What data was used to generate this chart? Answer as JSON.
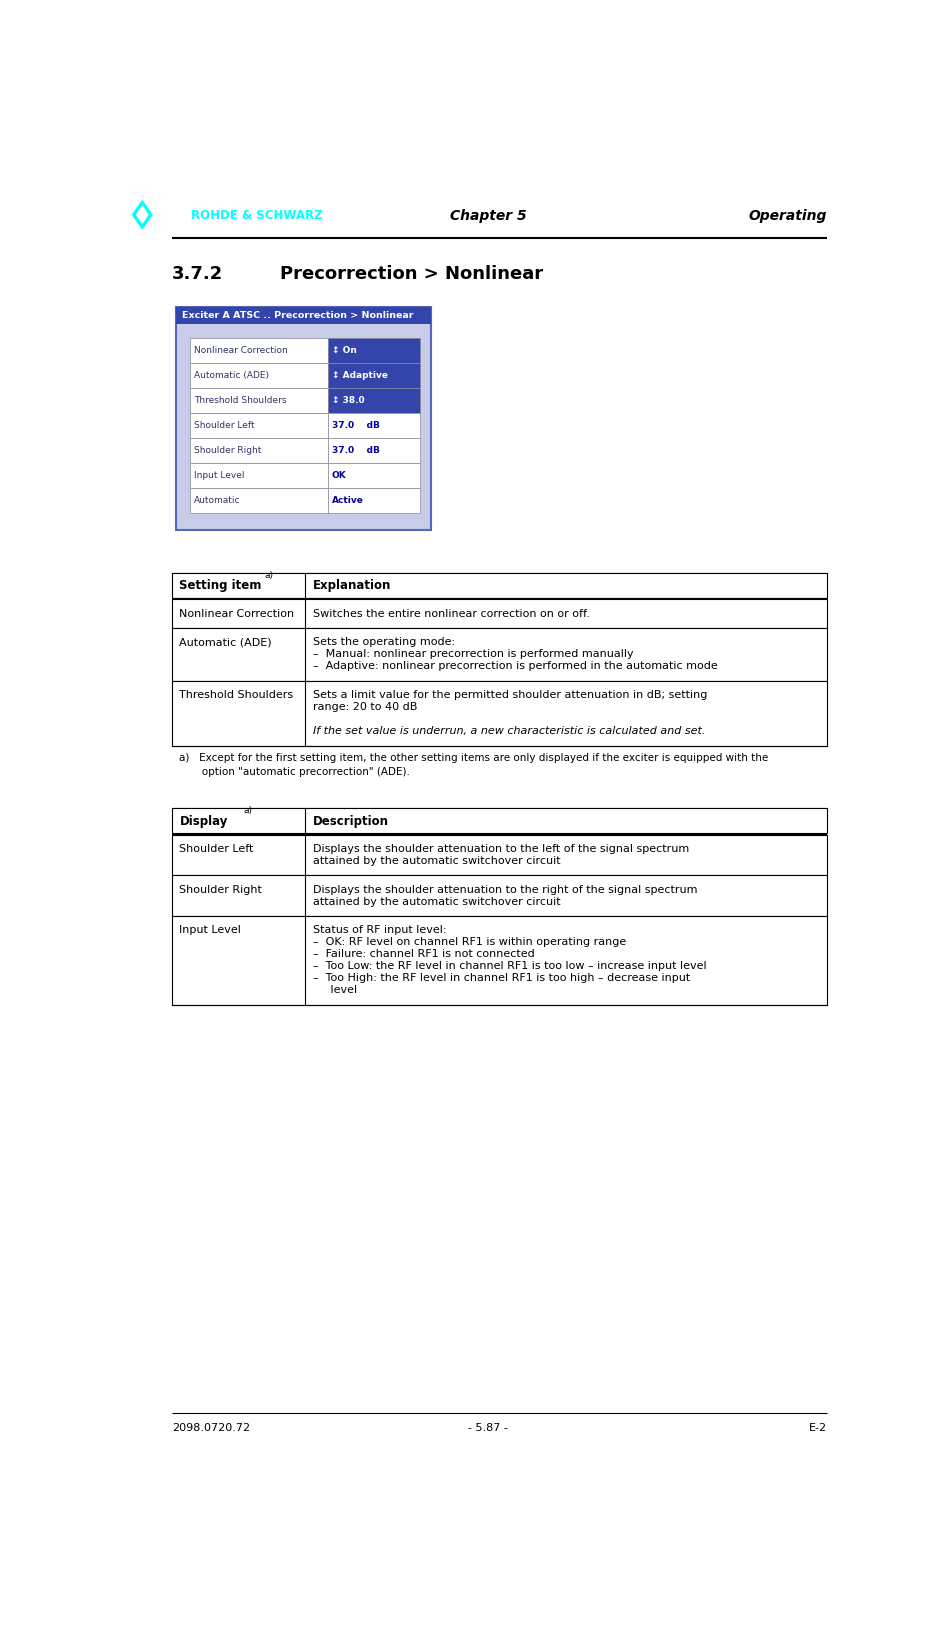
{
  "page_width": 9.52,
  "page_height": 16.29,
  "dpi": 100,
  "header_left": "ROHDE & SCHWARZ",
  "header_center": "Chapter 5",
  "header_right": "Operating",
  "footer_left": "2098.0720.72",
  "footer_center": "- 5.87 -",
  "footer_right": "E-2",
  "section_number": "3.7.2",
  "section_title": "Precorrection > Nonlinear",
  "screen_title": "Exciter A ATSC .. Precorrection > Nonlinear",
  "screen_bg": "#c8cce8",
  "screen_title_bg": "#3344aa",
  "screen_border": "#5566bb",
  "screen_rows": [
    {
      "label": "Nonlinear Correction",
      "value": "↕ On",
      "label_bg": "#ffffff",
      "val_bg": "#3344aa",
      "label_color": "#333366",
      "val_color": "#ffffff",
      "val_bold": true
    },
    {
      "label": "Automatic (ADE)",
      "value": "↕ Adaptive",
      "label_bg": "#ffffff",
      "val_bg": "#3344aa",
      "label_color": "#333366",
      "val_color": "#ffffff",
      "val_bold": true
    },
    {
      "label": "Threshold Shoulders",
      "value": "↕ 38.0",
      "label_bg": "#ffffff",
      "val_bg": "#3344aa",
      "label_color": "#333366",
      "val_color": "#ffffff",
      "val_bold": true
    },
    {
      "label": "Shoulder Left",
      "value": "37.0    dB",
      "label_bg": "#ffffff",
      "val_bg": "#ffffff",
      "label_color": "#333366",
      "val_color": "#000099",
      "val_bold": true
    },
    {
      "label": "Shoulder Right",
      "value": "37.0    dB",
      "label_bg": "#ffffff",
      "val_bg": "#ffffff",
      "label_color": "#333366",
      "val_color": "#000099",
      "val_bold": true
    },
    {
      "label": "Input Level",
      "value": "OK",
      "label_bg": "#ffffff",
      "val_bg": "#ffffff",
      "label_color": "#333366",
      "val_color": "#000099",
      "val_bold": true
    },
    {
      "label": "Automatic",
      "value": "Active",
      "label_bg": "#ffffff",
      "val_bg": "#ffffff",
      "label_color": "#333366",
      "val_color": "#000099",
      "val_bold": true
    }
  ],
  "setting_table_header_col1": "Setting item",
  "setting_table_header_col2": "Explanation",
  "setting_rows": [
    {
      "item": "Nonlinear Correction",
      "lines": [
        "Switches the entire nonlinear correction on or off."
      ]
    },
    {
      "item": "Automatic (ADE)",
      "lines": [
        "Sets the operating mode:",
        "–  Manual: nonlinear precorrection is performed manually",
        "–  Adaptive: nonlinear precorrection is performed in the automatic mode"
      ]
    },
    {
      "item": "Threshold Shoulders",
      "lines": [
        "Sets a limit value for the permitted shoulder attenuation in dB; setting",
        "range: 20 to 40 dB",
        "",
        "If the set value is underrun, a new characteristic is calculated and set."
      ],
      "italic_from": 3
    }
  ],
  "footnote_lines": [
    "a)   Except for the first setting item, the other setting items are only displayed if the exciter is equipped with the",
    "       option \"automatic precorrection\" (ADE)."
  ],
  "display_table_header_col1": "Display",
  "display_table_header_col2": "Description",
  "display_rows": [
    {
      "item": "Shoulder Left",
      "lines": [
        "Displays the shoulder attenuation to the left of the signal spectrum",
        "attained by the automatic switchover circuit"
      ]
    },
    {
      "item": "Shoulder Right",
      "lines": [
        "Displays the shoulder attenuation to the right of the signal spectrum",
        "attained by the automatic switchover circuit"
      ]
    },
    {
      "item": "Input Level",
      "lines": [
        "Status of RF input level:",
        "–  OK: RF level on channel RF1 is within operating range",
        "–  Failure: channel RF1 is not connected",
        "–  Too Low: the RF level in channel RF1 is too low – increase input level",
        "–  Too High: the RF level in channel RF1 is too high – decrease input",
        "     level"
      ]
    }
  ]
}
